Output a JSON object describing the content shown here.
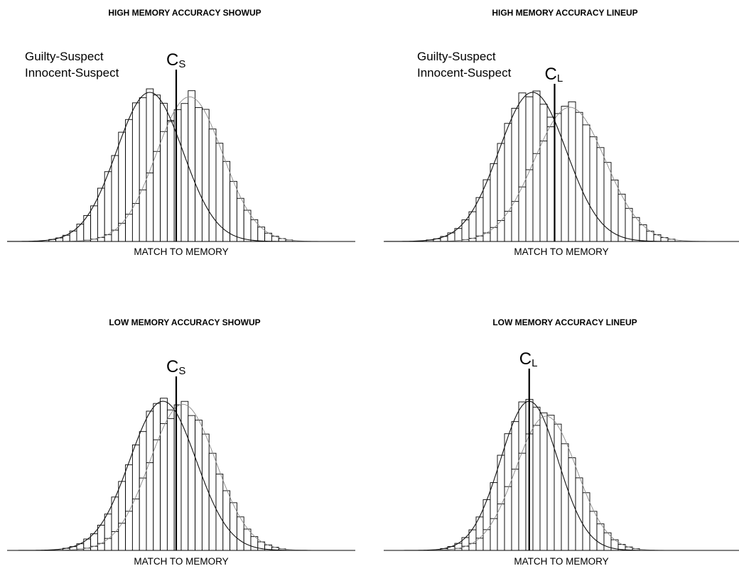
{
  "colors": {
    "guilty_curve": "#111111",
    "innocent_curve": "#8a8a8a",
    "bar_fill": "#ffffff",
    "bar_stroke": "#000000"
  },
  "chart_data": [
    {
      "type": "bar",
      "panel": "top-left",
      "title": "HIGH MEMORY ACCURACY SHOWUP",
      "xlabel": "MATCH TO MEMORY",
      "ylabel": "",
      "legend": [
        "Guilty-Suspect",
        "Innocent-Suspect"
      ],
      "legend_placement": "top-left",
      "xlim": [
        -3.5,
        7.0
      ],
      "ylim": [
        0,
        1.2
      ],
      "criterion": {
        "label": "C",
        "subscript": "S",
        "x": 1.6
      },
      "series": [
        {
          "name": "Guilty-Suspect",
          "mean": 0.8,
          "sd": 1.0,
          "peak": 1.0
        },
        {
          "name": "Innocent-Suspect",
          "mean": 2.0,
          "sd": 1.0,
          "peak": 0.97
        }
      ],
      "grid": false
    },
    {
      "type": "bar",
      "panel": "top-right",
      "title": "HIGH MEMORY ACCURACY LINEUP",
      "xlabel": "MATCH TO MEMORY",
      "ylabel": "",
      "legend": [
        "Guilty-Suspect",
        "Innocent-Suspect"
      ],
      "legend_placement": "top-left",
      "xlim": [
        -3.5,
        7.0
      ],
      "ylim": [
        0,
        1.2
      ],
      "criterion": {
        "label": "C",
        "subscript": "L",
        "x": 1.55
      },
      "series": [
        {
          "name": "Guilty-Suspect",
          "mean": 0.9,
          "sd": 1.0,
          "peak": 1.0
        },
        {
          "name": "Innocent-Suspect",
          "mean": 2.0,
          "sd": 1.05,
          "peak": 0.9
        }
      ],
      "grid": false
    },
    {
      "type": "bar",
      "panel": "bottom-left",
      "title": "LOW MEMORY ACCURACY SHOWUP",
      "xlabel": "MATCH TO MEMORY",
      "ylabel": "",
      "legend": [],
      "xlim": [
        -3.5,
        7.0
      ],
      "ylim": [
        0,
        1.2
      ],
      "criterion": {
        "label": "C",
        "subscript": "S",
        "x": 1.6
      },
      "series": [
        {
          "mean": 1.2,
          "sd": 1.0,
          "peak": 1.0
        },
        {
          "mean": 1.8,
          "sd": 1.0,
          "peak": 0.98
        }
      ],
      "grid": false
    },
    {
      "type": "bar",
      "panel": "bottom-right",
      "title": "LOW MEMORY ACCURACY LINEUP",
      "xlabel": "MATCH TO MEMORY",
      "ylabel": "",
      "legend": [],
      "xlim": [
        -3.5,
        7.0
      ],
      "ylim": [
        0,
        1.2
      ],
      "criterion": {
        "label": "C",
        "subscript": "L",
        "x": 0.8
      },
      "series": [
        {
          "mean": 0.8,
          "sd": 0.85,
          "peak": 1.0
        },
        {
          "mean": 1.3,
          "sd": 0.9,
          "peak": 0.9
        }
      ],
      "grid": false
    }
  ]
}
